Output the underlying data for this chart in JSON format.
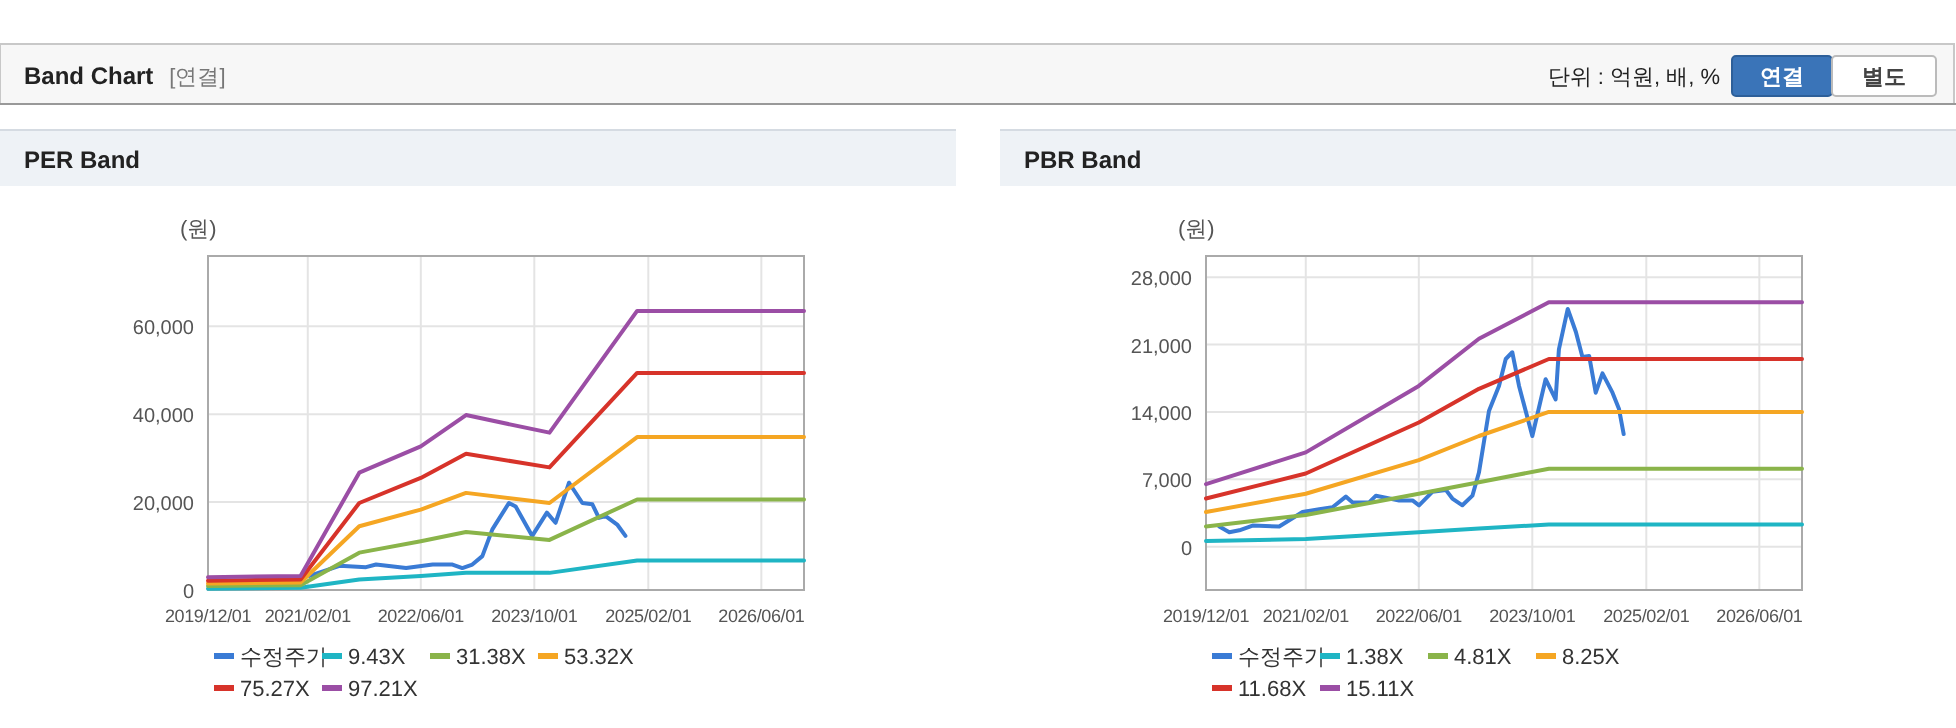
{
  "chart_data": [
    {
      "type": "other",
      "title": "Band Chart",
      "annotations": [
        "[연결]",
        "단위 : 억원, 배, %",
        "연결",
        "별도"
      ]
    },
    {
      "type": "line",
      "title": "PER Band",
      "ylabel": "(원)",
      "xlim": [
        "2019-12-01",
        "2026-12-01"
      ],
      "ylim": [
        0,
        76000
      ],
      "xticks": [
        {
          "value": "2019-12-01",
          "label": "2019/12/01"
        },
        {
          "value": "2021-02-01",
          "label": "2021/02/01"
        },
        {
          "value": "2022-06-01",
          "label": "2022/06/01"
        },
        {
          "value": "2023-10-01",
          "label": "2023/10/01"
        },
        {
          "value": "2025-02-01",
          "label": "2025/02/01"
        },
        {
          "value": "2026-06-01",
          "label": "2026/06/01"
        }
      ],
      "yticks": [
        {
          "value": 0,
          "label": "0"
        },
        {
          "value": 20000,
          "label": "20,000"
        },
        {
          "value": 40000,
          "label": "40,000"
        },
        {
          "value": 60000,
          "label": "60,000"
        }
      ],
      "grid": true,
      "legend": "bottom",
      "marker": "none",
      "line_style": "solid",
      "series": [
        {
          "name": "수정주가",
          "color": "#3a7bd5",
          "x": [
            "2021-02-08",
            "2021-06-17",
            "2021-10-09",
            "2021-11-21",
            "2022-03-30",
            "2022-07-22",
            "2022-10-15",
            "2022-11-26",
            "2023-01-08",
            "2023-02-20",
            "2023-04-04",
            "2023-06-14",
            "2023-07-13",
            "2023-09-22",
            "2023-11-24",
            "2023-12-31",
            "2024-02-27",
            "2024-04-24",
            "2024-06-06",
            "2024-07-04",
            "2024-08-02",
            "2024-09-22",
            "2024-10-26"
          ],
          "values": [
            3200,
            5500,
            5200,
            5800,
            5000,
            5800,
            5800,
            5000,
            5800,
            7700,
            13800,
            19800,
            19000,
            12300,
            17600,
            15300,
            24400,
            19800,
            19500,
            16400,
            16800,
            14800,
            12300
          ]
        },
        {
          "name": "9.43X",
          "color": "#1fb5c4",
          "x": [
            "2019-12-01",
            "2021-01-01",
            "2021-09-10",
            "2022-06-01",
            "2022-12-12",
            "2023-12-05",
            "2024-12-15",
            "2026-12-01"
          ],
          "values": [
            300,
            500,
            2400,
            3200,
            3900,
            3900,
            6700,
            6700
          ]
        },
        {
          "name": "31.38X",
          "color": "#8ab44a",
          "x": [
            "2019-12-01",
            "2021-01-01",
            "2021-09-10",
            "2022-06-01",
            "2022-12-12",
            "2023-12-05",
            "2024-12-15",
            "2026-12-01"
          ],
          "values": [
            900,
            1100,
            8500,
            11100,
            13200,
            11400,
            20600,
            20600
          ]
        },
        {
          "name": "53.32X",
          "color": "#f5a623",
          "x": [
            "2019-12-01",
            "2021-01-01",
            "2021-09-10",
            "2022-06-01",
            "2022-12-12",
            "2023-12-05",
            "2024-12-15",
            "2026-12-01"
          ],
          "values": [
            1500,
            1700,
            14500,
            18300,
            22100,
            19800,
            34800,
            34800
          ]
        },
        {
          "name": "75.27X",
          "color": "#d7332a",
          "x": [
            "2019-12-01",
            "2021-01-01",
            "2021-09-10",
            "2022-06-01",
            "2022-12-12",
            "2023-12-05",
            "2024-12-15",
            "2026-12-01"
          ],
          "values": [
            2100,
            2400,
            19800,
            25500,
            31000,
            27900,
            49400,
            49400
          ]
        },
        {
          "name": "97.21X",
          "color": "#9b4ea5",
          "x": [
            "2019-12-01",
            "2021-01-01",
            "2021-09-10",
            "2022-06-01",
            "2022-12-12",
            "2023-12-05",
            "2024-12-15",
            "2026-12-01"
          ],
          "values": [
            2900,
            3200,
            26700,
            32700,
            39800,
            35800,
            63500,
            63500
          ]
        }
      ]
    },
    {
      "type": "line",
      "title": "PBR Band",
      "ylabel": "(원)",
      "xlim": [
        "2019-12-01",
        "2026-12-01"
      ],
      "ylim": [
        -4500,
        30200
      ],
      "xticks": [
        {
          "value": "2019-12-01",
          "label": "2019/12/01"
        },
        {
          "value": "2021-02-01",
          "label": "2021/02/01"
        },
        {
          "value": "2022-06-01",
          "label": "2022/06/01"
        },
        {
          "value": "2023-10-01",
          "label": "2023/10/01"
        },
        {
          "value": "2025-02-01",
          "label": "2025/02/01"
        },
        {
          "value": "2026-06-01",
          "label": "2026/06/01"
        }
      ],
      "yticks": [
        {
          "value": 0,
          "label": "0"
        },
        {
          "value": 7000,
          "label": "7,000"
        },
        {
          "value": 14000,
          "label": "14,000"
        },
        {
          "value": 21000,
          "label": "21,000"
        },
        {
          "value": 28000,
          "label": "28,000"
        }
      ],
      "grid": true,
      "legend": "bottom",
      "marker": "none",
      "line_style": "solid",
      "series": [
        {
          "name": "수정주가",
          "color": "#3a7bd5",
          "x": [
            "2020-01-27",
            "2020-03-10",
            "2020-04-22",
            "2020-06-18",
            "2020-10-10",
            "2021-01-18",
            "2021-03-31",
            "2021-05-27",
            "2021-07-23",
            "2021-08-21",
            "2021-10-31",
            "2021-11-29",
            "2022-03-09",
            "2022-05-05",
            "2022-06-02",
            "2022-07-29",
            "2022-09-25",
            "2022-10-23",
            "2022-12-05",
            "2023-01-17",
            "2023-02-14",
            "2023-03-29",
            "2023-05-11",
            "2023-06-09",
            "2023-07-07",
            "2023-08-05",
            "2023-10-01",
            "2023-11-27",
            "2024-01-09",
            "2024-01-23",
            "2024-03-01",
            "2024-04-05",
            "2024-05-03",
            "2024-06-01",
            "2024-06-29",
            "2024-07-28",
            "2024-09-09",
            "2024-10-07",
            "2024-10-27"
          ],
          "values": [
            2100,
            1500,
            1700,
            2200,
            2100,
            3600,
            3900,
            4100,
            5200,
            4600,
            4600,
            5300,
            4800,
            4800,
            4300,
            5700,
            5900,
            5000,
            4300,
            5300,
            7700,
            14100,
            16700,
            19500,
            20200,
            16700,
            11500,
            17400,
            15300,
            20500,
            24700,
            22300,
            19700,
            19800,
            16000,
            18000,
            16000,
            14300,
            11700
          ]
        },
        {
          "name": "1.38X",
          "color": "#1fb5c4",
          "x": [
            "2019-12-01",
            "2021-02-01",
            "2022-06-01",
            "2023-02-14",
            "2023-12-11",
            "2026-12-01"
          ],
          "values": [
            600,
            800,
            1500,
            1900,
            2300,
            2300
          ]
        },
        {
          "name": "4.81X",
          "color": "#8ab44a",
          "x": [
            "2019-12-01",
            "2021-02-01",
            "2022-06-01",
            "2023-02-14",
            "2023-12-11",
            "2026-12-01"
          ],
          "values": [
            2100,
            3300,
            5500,
            6700,
            8100,
            8100
          ]
        },
        {
          "name": "8.25X",
          "color": "#f5a623",
          "x": [
            "2019-12-01",
            "2021-02-01",
            "2022-06-01",
            "2023-02-14",
            "2023-12-11",
            "2026-12-01"
          ],
          "values": [
            3600,
            5500,
            9000,
            11500,
            14000,
            14000
          ]
        },
        {
          "name": "11.68X",
          "color": "#d7332a",
          "x": [
            "2019-12-01",
            "2021-02-01",
            "2022-06-01",
            "2023-02-14",
            "2023-12-11",
            "2026-12-01"
          ],
          "values": [
            5000,
            7600,
            12900,
            16400,
            19500,
            19500
          ]
        },
        {
          "name": "15.11X",
          "color": "#9b4ea5",
          "x": [
            "2019-12-01",
            "2021-02-01",
            "2022-06-01",
            "2023-02-14",
            "2023-12-11",
            "2026-12-01"
          ],
          "values": [
            6500,
            9800,
            16700,
            21600,
            25400,
            25400
          ]
        }
      ]
    }
  ]
}
